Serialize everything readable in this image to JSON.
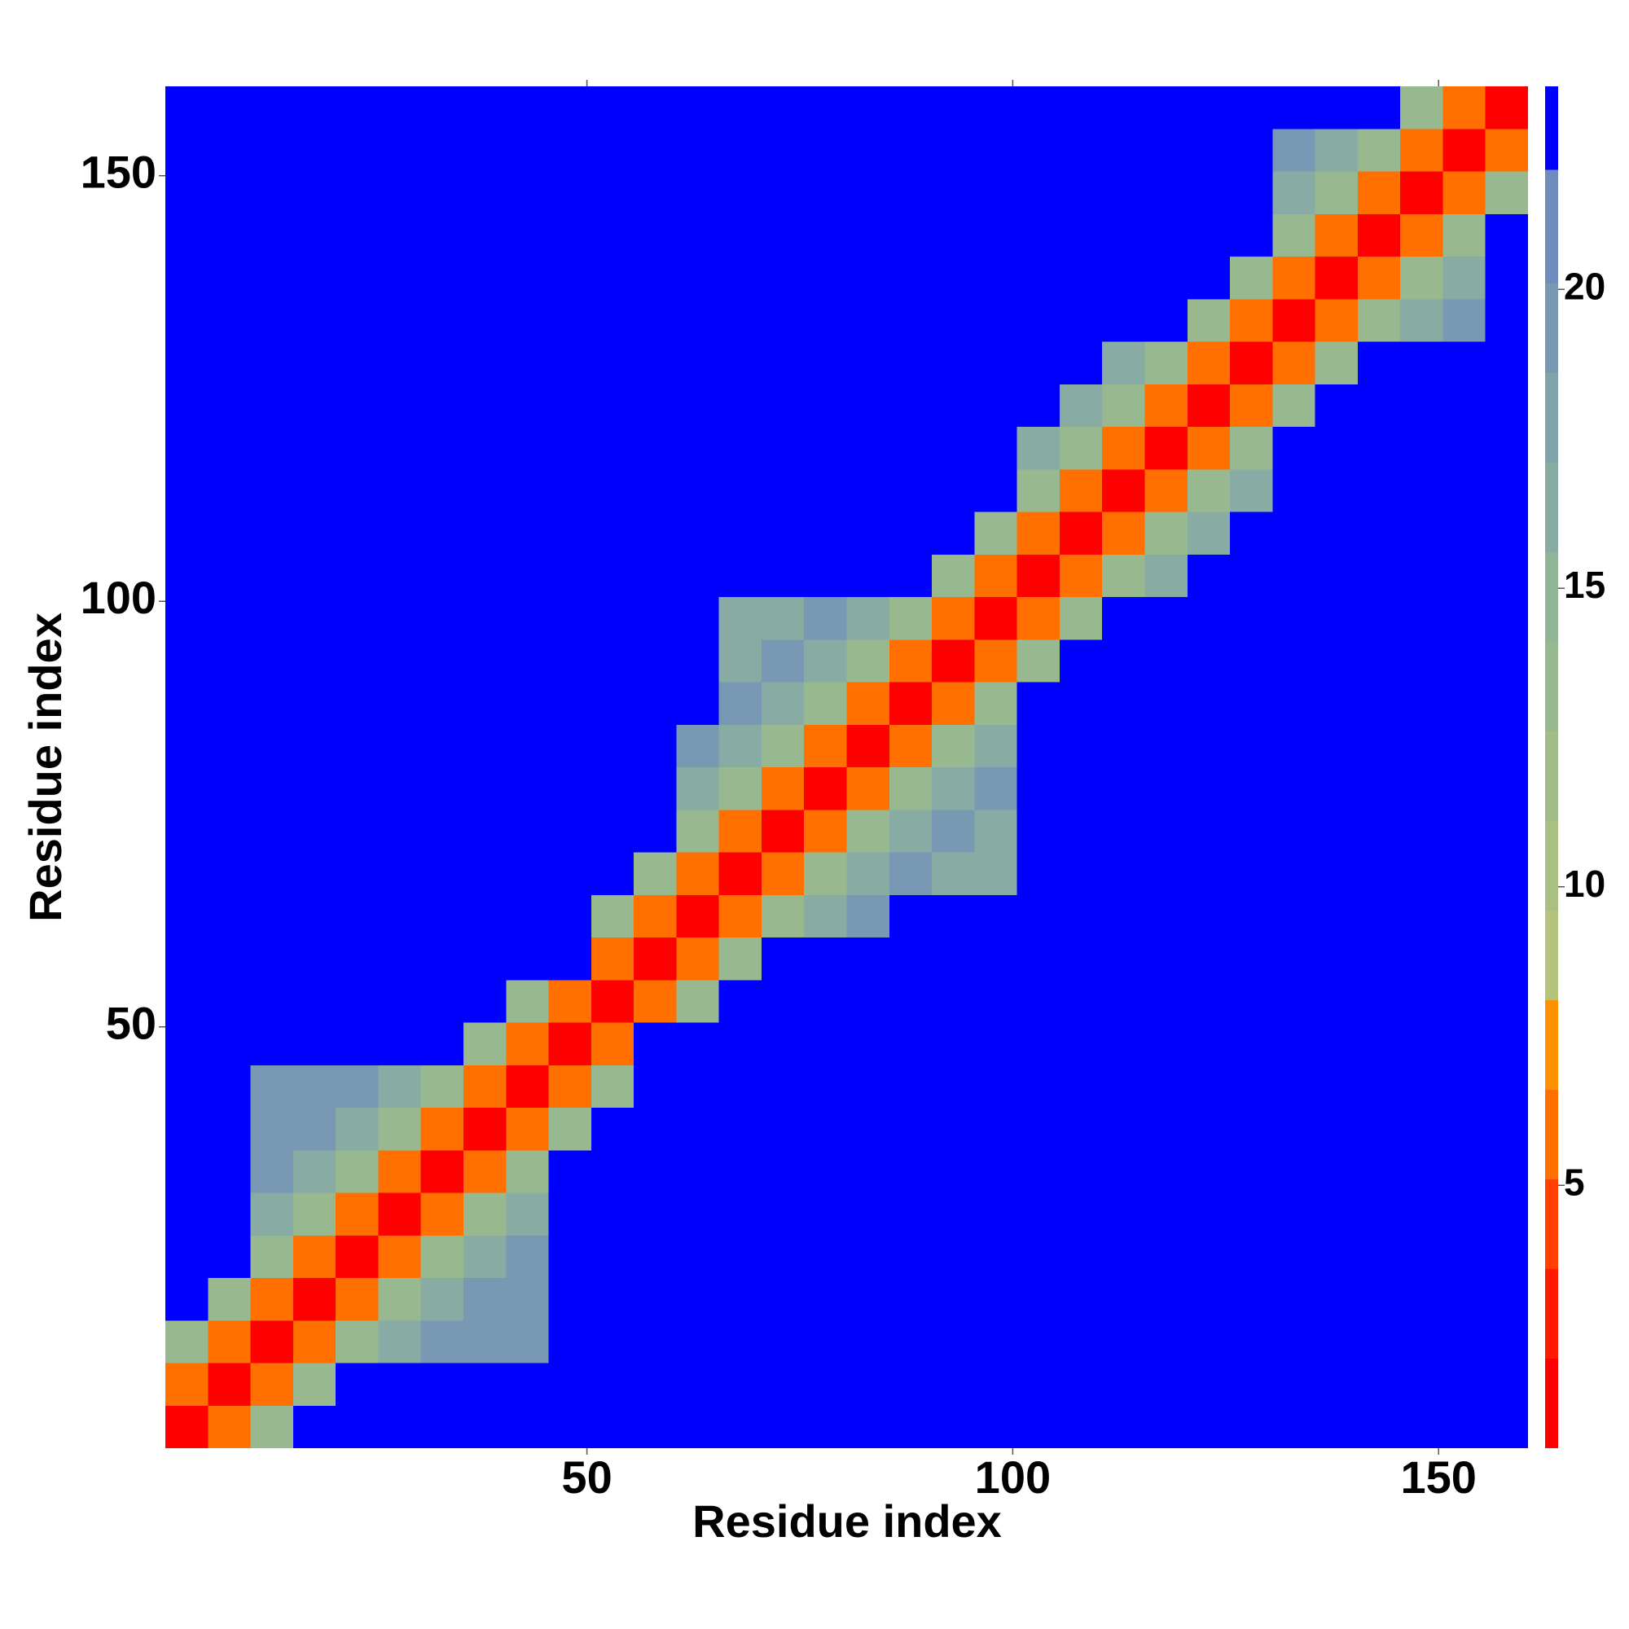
{
  "chart_data": {
    "type": "heatmap",
    "xlabel": "Residue index",
    "ylabel": "Residue index",
    "xbins": [
      0.5,
      5.5,
      10.5,
      15.5,
      20.5,
      25.5,
      30.5,
      35.5,
      40.5,
      45.5,
      50.5,
      55.5,
      60.5,
      65.5,
      70.5,
      75.5,
      80.5,
      85.5,
      90.5,
      95.5,
      100.5,
      105.5,
      110.5,
      115.5,
      120.5,
      125.5,
      130.5,
      135.5,
      140.5,
      145.5,
      150.5,
      155.5,
      160.5
    ],
    "ybins": [
      0.5,
      5.5,
      10.5,
      15.5,
      20.5,
      25.5,
      30.5,
      35.5,
      40.5,
      45.5,
      50.5,
      55.5,
      60.5,
      65.5,
      70.5,
      75.5,
      80.5,
      85.5,
      90.5,
      95.5,
      100.5,
      105.5,
      110.5,
      115.5,
      120.5,
      125.5,
      130.5,
      135.5,
      140.5,
      145.5,
      150.5,
      155.5,
      160.5
    ],
    "xlim": [
      0.5,
      160.5
    ],
    "ylim": [
      0.5,
      160.5
    ],
    "xticks": [
      50,
      100,
      150
    ],
    "yticks": [
      50,
      100,
      150
    ],
    "z": [
      [
        1.5,
        6,
        13,
        23,
        23,
        23,
        23,
        23,
        23,
        23,
        23,
        23,
        23,
        23,
        23,
        23,
        23,
        23,
        23,
        23,
        23,
        23,
        23,
        23,
        23,
        23,
        23,
        23,
        23,
        23,
        23,
        23
      ],
      [
        6,
        1.5,
        6,
        13,
        23,
        23,
        23,
        23,
        23,
        23,
        23,
        23,
        23,
        23,
        23,
        23,
        23,
        23,
        23,
        23,
        23,
        23,
        23,
        23,
        23,
        23,
        23,
        23,
        23,
        23,
        23,
        23
      ],
      [
        13,
        6,
        1.5,
        6,
        13,
        17,
        19,
        20,
        20,
        23,
        23,
        23,
        23,
        23,
        23,
        23,
        23,
        23,
        23,
        23,
        23,
        23,
        23,
        23,
        23,
        23,
        23,
        23,
        23,
        23,
        23,
        23
      ],
      [
        23,
        13,
        6,
        1.5,
        6,
        13,
        17,
        19,
        20,
        23,
        23,
        23,
        23,
        23,
        23,
        23,
        23,
        23,
        23,
        23,
        23,
        23,
        23,
        23,
        23,
        23,
        23,
        23,
        23,
        23,
        23,
        23
      ],
      [
        23,
        23,
        13,
        6,
        1.5,
        6,
        13,
        17,
        19,
        23,
        23,
        23,
        23,
        23,
        23,
        23,
        23,
        23,
        23,
        23,
        23,
        23,
        23,
        23,
        23,
        23,
        23,
        23,
        23,
        23,
        23,
        23
      ],
      [
        23,
        23,
        17,
        13,
        6,
        1.5,
        6,
        13,
        17,
        23,
        23,
        23,
        23,
        23,
        23,
        23,
        23,
        23,
        23,
        23,
        23,
        23,
        23,
        23,
        23,
        23,
        23,
        23,
        23,
        23,
        23,
        23
      ],
      [
        23,
        23,
        19,
        17,
        13,
        6,
        1.5,
        6,
        13,
        23,
        23,
        23,
        23,
        23,
        23,
        23,
        23,
        23,
        23,
        23,
        23,
        23,
        23,
        23,
        23,
        23,
        23,
        23,
        23,
        23,
        23,
        23
      ],
      [
        23,
        23,
        20,
        19,
        17,
        13,
        6,
        1.5,
        6,
        13,
        23,
        23,
        23,
        23,
        23,
        23,
        23,
        23,
        23,
        23,
        23,
        23,
        23,
        23,
        23,
        23,
        23,
        23,
        23,
        23,
        23,
        23
      ],
      [
        23,
        23,
        20,
        20,
        19,
        17,
        13,
        6,
        1.5,
        6,
        13,
        23,
        23,
        23,
        23,
        23,
        23,
        23,
        23,
        23,
        23,
        23,
        23,
        23,
        23,
        23,
        23,
        23,
        23,
        23,
        23,
        23
      ],
      [
        23,
        23,
        23,
        23,
        23,
        23,
        23,
        13,
        6,
        1.5,
        6,
        23,
        23,
        23,
        23,
        23,
        23,
        23,
        23,
        23,
        23,
        23,
        23,
        23,
        23,
        23,
        23,
        23,
        23,
        23,
        23,
        23
      ],
      [
        23,
        23,
        23,
        23,
        23,
        23,
        23,
        23,
        13,
        6,
        1.5,
        6,
        13,
        23,
        23,
        23,
        23,
        23,
        23,
        23,
        23,
        23,
        23,
        23,
        23,
        23,
        23,
        23,
        23,
        23,
        23,
        23
      ],
      [
        23,
        23,
        23,
        23,
        23,
        23,
        23,
        23,
        23,
        23,
        6,
        1.5,
        6,
        13,
        23,
        23,
        23,
        23,
        23,
        23,
        23,
        23,
        23,
        23,
        23,
        23,
        23,
        23,
        23,
        23,
        23,
        23
      ],
      [
        23,
        23,
        23,
        23,
        23,
        23,
        23,
        23,
        23,
        23,
        13,
        6,
        1.5,
        6,
        13,
        17,
        19,
        23,
        23,
        23,
        23,
        23,
        23,
        23,
        23,
        23,
        23,
        23,
        23,
        23,
        23,
        23
      ],
      [
        23,
        23,
        23,
        23,
        23,
        23,
        23,
        23,
        23,
        23,
        23,
        13,
        6,
        1.5,
        6,
        13,
        17,
        19,
        16,
        16,
        23,
        23,
        23,
        23,
        23,
        23,
        23,
        23,
        23,
        23,
        23,
        23
      ],
      [
        23,
        23,
        23,
        23,
        23,
        23,
        23,
        23,
        23,
        23,
        23,
        23,
        13,
        6,
        1.5,
        6,
        13,
        17,
        19,
        16,
        23,
        23,
        23,
        23,
        23,
        23,
        23,
        23,
        23,
        23,
        23,
        23
      ],
      [
        23,
        23,
        23,
        23,
        23,
        23,
        23,
        23,
        23,
        23,
        23,
        23,
        17,
        13,
        6,
        1.5,
        6,
        13,
        17,
        19,
        23,
        23,
        23,
        23,
        23,
        23,
        23,
        23,
        23,
        23,
        23,
        23
      ],
      [
        23,
        23,
        23,
        23,
        23,
        23,
        23,
        23,
        23,
        23,
        23,
        23,
        19,
        17,
        13,
        6,
        1.5,
        6,
        13,
        17,
        23,
        23,
        23,
        23,
        23,
        23,
        23,
        23,
        23,
        23,
        23,
        23
      ],
      [
        23,
        23,
        23,
        23,
        23,
        23,
        23,
        23,
        23,
        23,
        23,
        23,
        23,
        19,
        17,
        13,
        6,
        1.5,
        6,
        13,
        23,
        23,
        23,
        23,
        23,
        23,
        23,
        23,
        23,
        23,
        23,
        23
      ],
      [
        23,
        23,
        23,
        23,
        23,
        23,
        23,
        23,
        23,
        23,
        23,
        23,
        23,
        16,
        19,
        17,
        13,
        6,
        1.5,
        6,
        13,
        23,
        23,
        23,
        23,
        23,
        23,
        23,
        23,
        23,
        23,
        23
      ],
      [
        23,
        23,
        23,
        23,
        23,
        23,
        23,
        23,
        23,
        23,
        23,
        23,
        23,
        16,
        16,
        19,
        17,
        13,
        6,
        1.5,
        6,
        13,
        23,
        23,
        23,
        23,
        23,
        23,
        23,
        23,
        23,
        23
      ],
      [
        23,
        23,
        23,
        23,
        23,
        23,
        23,
        23,
        23,
        23,
        23,
        23,
        23,
        23,
        23,
        23,
        23,
        23,
        13,
        6,
        1.5,
        6,
        13,
        17,
        23,
        23,
        23,
        23,
        23,
        23,
        23,
        23
      ],
      [
        23,
        23,
        23,
        23,
        23,
        23,
        23,
        23,
        23,
        23,
        23,
        23,
        23,
        23,
        23,
        23,
        23,
        23,
        23,
        13,
        6,
        1.5,
        6,
        13,
        17,
        23,
        23,
        23,
        23,
        23,
        23,
        23
      ],
      [
        23,
        23,
        23,
        23,
        23,
        23,
        23,
        23,
        23,
        23,
        23,
        23,
        23,
        23,
        23,
        23,
        23,
        23,
        23,
        23,
        13,
        6,
        1.5,
        6,
        13,
        17,
        23,
        23,
        23,
        23,
        23,
        23
      ],
      [
        23,
        23,
        23,
        23,
        23,
        23,
        23,
        23,
        23,
        23,
        23,
        23,
        23,
        23,
        23,
        23,
        23,
        23,
        23,
        23,
        17,
        13,
        6,
        1.5,
        6,
        13,
        23,
        23,
        23,
        23,
        23,
        23
      ],
      [
        23,
        23,
        23,
        23,
        23,
        23,
        23,
        23,
        23,
        23,
        23,
        23,
        23,
        23,
        23,
        23,
        23,
        23,
        23,
        23,
        23,
        17,
        13,
        6,
        1.5,
        6,
        13,
        23,
        23,
        23,
        23,
        23
      ],
      [
        23,
        23,
        23,
        23,
        23,
        23,
        23,
        23,
        23,
        23,
        23,
        23,
        23,
        23,
        23,
        23,
        23,
        23,
        23,
        23,
        23,
        23,
        17,
        13,
        6,
        1.5,
        6,
        13,
        23,
        23,
        23,
        23
      ],
      [
        23,
        23,
        23,
        23,
        23,
        23,
        23,
        23,
        23,
        23,
        23,
        23,
        23,
        23,
        23,
        23,
        23,
        23,
        23,
        23,
        23,
        23,
        23,
        23,
        13,
        6,
        1.5,
        6,
        13,
        17,
        19,
        23
      ],
      [
        23,
        23,
        23,
        23,
        23,
        23,
        23,
        23,
        23,
        23,
        23,
        23,
        23,
        23,
        23,
        23,
        23,
        23,
        23,
        23,
        23,
        23,
        23,
        23,
        23,
        13,
        6,
        1.5,
        6,
        13,
        17,
        23
      ],
      [
        23,
        23,
        23,
        23,
        23,
        23,
        23,
        23,
        23,
        23,
        23,
        23,
        23,
        23,
        23,
        23,
        23,
        23,
        23,
        23,
        23,
        23,
        23,
        23,
        23,
        23,
        13,
        6,
        1.5,
        6,
        13,
        23
      ],
      [
        23,
        23,
        23,
        23,
        23,
        23,
        23,
        23,
        23,
        23,
        23,
        23,
        23,
        23,
        23,
        23,
        23,
        23,
        23,
        23,
        23,
        23,
        23,
        23,
        23,
        23,
        17,
        13,
        6,
        1.5,
        6,
        13
      ],
      [
        23,
        23,
        23,
        23,
        23,
        23,
        23,
        23,
        23,
        23,
        23,
        23,
        23,
        23,
        23,
        23,
        23,
        23,
        23,
        23,
        23,
        23,
        23,
        23,
        23,
        23,
        19,
        17,
        13,
        6,
        1.5,
        6
      ],
      [
        23,
        23,
        23,
        23,
        23,
        23,
        23,
        23,
        23,
        23,
        23,
        23,
        23,
        23,
        23,
        23,
        23,
        23,
        23,
        23,
        23,
        23,
        23,
        23,
        23,
        23,
        23,
        23,
        23,
        13,
        6,
        1.5
      ]
    ],
    "colorbar": {
      "levels": [
        0.6,
        2.1,
        3.6,
        5.1,
        6.6,
        8.1,
        9.6,
        11.1,
        12.6,
        14.1,
        15.6,
        17.1,
        18.6,
        20.1,
        22.0,
        23.4
      ],
      "colors": [
        "#ff0000",
        "#ff1a00",
        "#ff4000",
        "#ff7000",
        "#ff9000",
        "#b4c47c",
        "#a8c081",
        "#a0bc88",
        "#98b890",
        "#90b498",
        "#88aca4",
        "#80a4ac",
        "#7898b4",
        "#6f8cbc",
        "#0000ff"
      ],
      "ticks": [
        5,
        10,
        15,
        20
      ]
    }
  }
}
